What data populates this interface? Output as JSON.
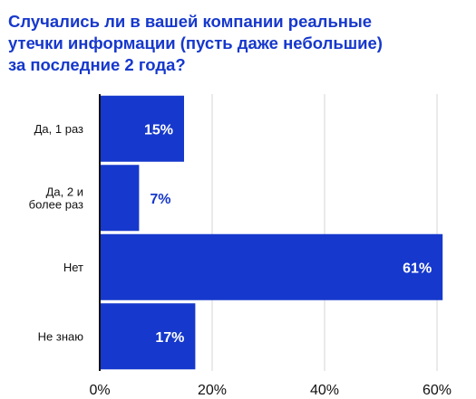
{
  "colors": {
    "bar": "#1638cc",
    "title": "#1638cc",
    "grid": "#d4d4d4",
    "axis": "#111111",
    "label_inside": "#ffffff",
    "label_outside": "#1638cc"
  },
  "chart_data": {
    "type": "bar",
    "orientation": "horizontal",
    "title": "Случались ли в вашей компании реальные\nутечки информации (пусть даже небольшие)\nза последние 2 года?",
    "categories": [
      [
        "Да, 1 раз"
      ],
      [
        "Да, 2 и",
        "более раз"
      ],
      [
        "Нет"
      ],
      [
        "Не знаю"
      ]
    ],
    "values": [
      15,
      7,
      61,
      17
    ],
    "data_labels": [
      "15%",
      "7%",
      "61%",
      "17%"
    ],
    "xlim": [
      0,
      60
    ],
    "xticks": [
      0,
      20,
      40,
      60
    ],
    "xtick_labels": [
      "0%",
      "20%",
      "40%",
      "60%"
    ],
    "grid": "vertical",
    "legend": "none"
  }
}
